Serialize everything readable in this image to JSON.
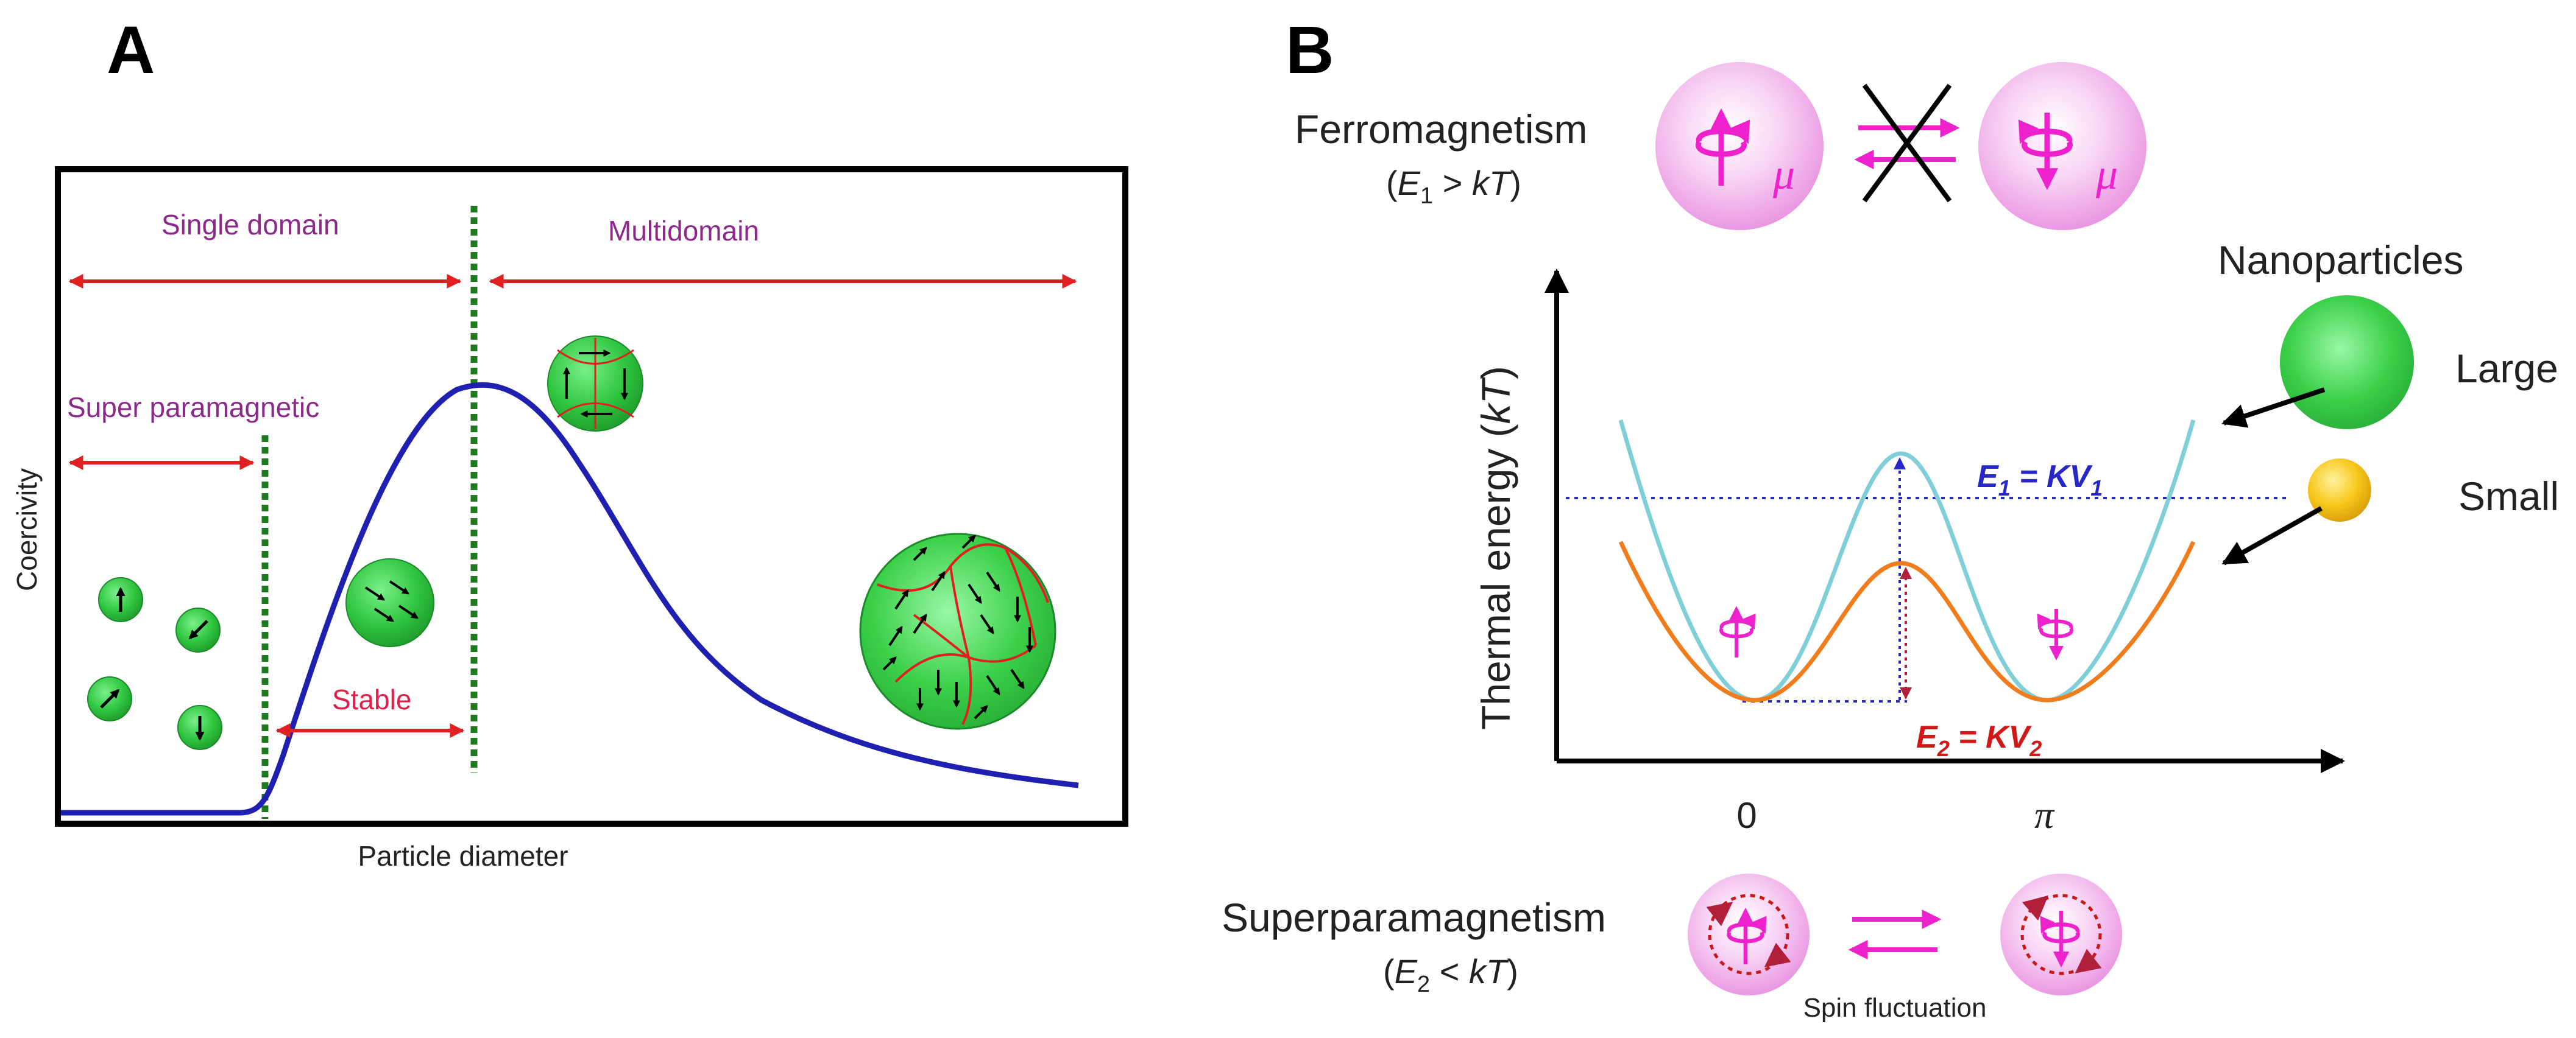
{
  "panel_a": {
    "letter": "A",
    "y_axis_label": "Coercivity",
    "x_axis_label": "Particle diameter",
    "regions": {
      "single_domain": "Single domain",
      "multidomain": "Multidomain",
      "superparamagnetic": "Super paramagnetic",
      "stable": "Stable"
    }
  },
  "panel_b": {
    "letter": "B",
    "ferromagnetism": "Ferromagnetism",
    "ferro_cond_var": "E",
    "ferro_cond_sub": "1",
    "ferro_cond_rel": " > ",
    "ferro_cond_rhs": "kT",
    "mu": "μ",
    "y_axis_var": "Thermal energy (",
    "y_axis_kt": "kT",
    "y_axis_close": ")",
    "tick_zero": "0",
    "tick_pi": "π",
    "e1_var": "E",
    "e1_sub": "1",
    "e1_rhs": " = KV",
    "e1_rhs_sub": "1",
    "e2_var": "E",
    "e2_sub": "2",
    "e2_rhs": " = KV",
    "e2_rhs_sub": "2",
    "nanoparticles": "Nanoparticles",
    "large": "Large",
    "small": "Small",
    "superparamagnetism": "Superparamagnetism",
    "super_cond_var": "E",
    "super_cond_sub": "2",
    "super_cond_rel": " < ",
    "super_cond_rhs": "kT",
    "spin_fluctuation": "Spin fluctuation"
  },
  "colors": {
    "coercivity_curve": "#1f1fb0",
    "region_arrow": "#e02020",
    "region_label": "#8b2a8b",
    "stable_label": "#e0204a",
    "large_curve": "#80cfd8",
    "small_curve": "#f07c1c",
    "e1_label": "#2828c8",
    "e2_label": "#d01818",
    "magenta": "#ee22cc",
    "particle_green": "#3cd04a",
    "particle_yellow": "#f2c21a"
  }
}
